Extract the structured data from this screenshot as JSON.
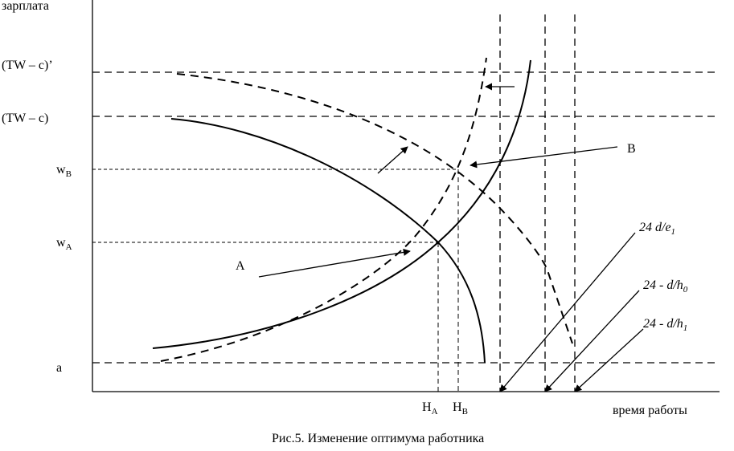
{
  "figure": {
    "caption": "Рис.5. Изменение оптимума работника",
    "y_axis_label": "зарплата",
    "x_axis_label": "время работы",
    "y_ticks": {
      "tw_c_prime": "(TW – c)’",
      "tw_c": "(TW – c)",
      "w_b_main": "w",
      "w_b_sub": "B",
      "w_a_main": "w",
      "w_a_sub": "A",
      "a": "a"
    },
    "x_ticks": {
      "h_a_main": "H",
      "h_a_sub": "A",
      "h_b_main": "H",
      "h_b_sub": "B"
    },
    "point_labels": {
      "a": "A",
      "b": "B"
    },
    "line_labels": {
      "l1": "24    d/e",
      "l1_sub": "1",
      "l2": "24 - d/h",
      "l2_sub": "0",
      "l3": "24 - d/h",
      "l3_sub": "1"
    },
    "colors": {
      "ink": "#000000",
      "background": "#ffffff"
    }
  }
}
